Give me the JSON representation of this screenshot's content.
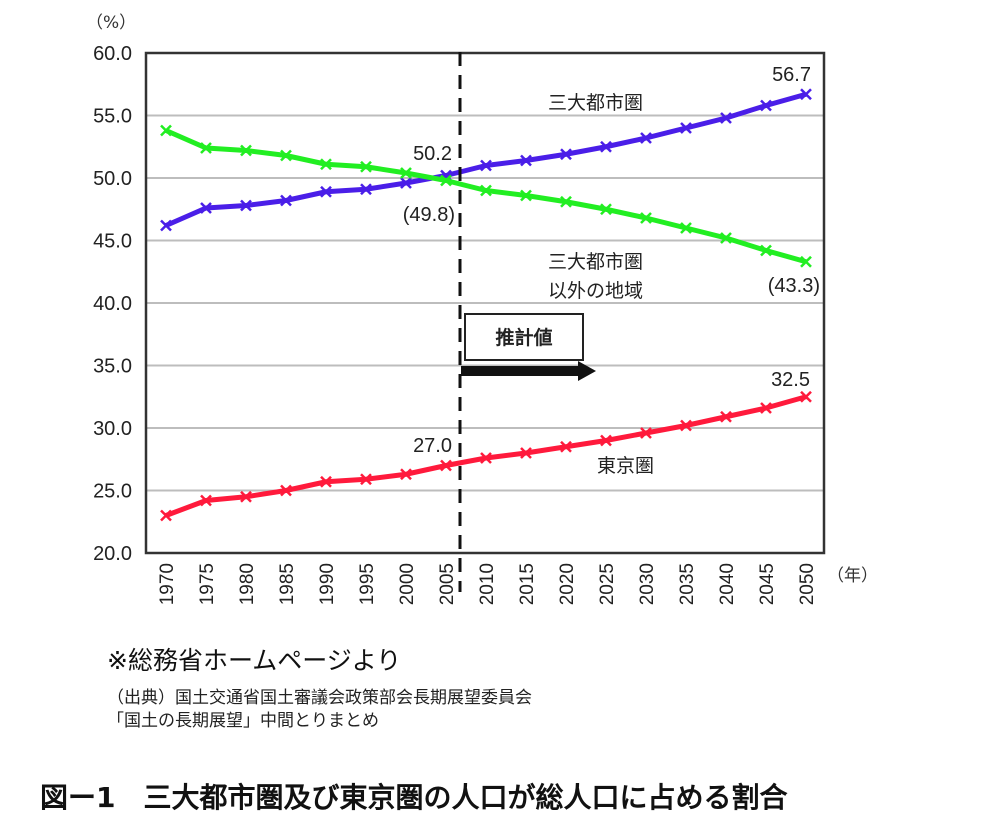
{
  "chart_data": {
    "type": "line",
    "title": "図ー1　三大都市圏及び東京圏の人口が総人口に占める割合",
    "ylabel": "（%）",
    "xlabel": "（年）",
    "ylim": [
      20.0,
      60.0
    ],
    "yticks": [
      "60.0",
      "55.0",
      "50.0",
      "45.0",
      "40.0",
      "35.0",
      "30.0",
      "25.0",
      "20.0"
    ],
    "ytick_values": [
      60,
      55,
      50,
      45,
      40,
      35,
      30,
      25,
      20
    ],
    "grid": true,
    "x": [
      "1970",
      "1975",
      "1980",
      "1985",
      "1990",
      "1995",
      "2000",
      "2005",
      "2010",
      "2015",
      "2020",
      "2025",
      "2030",
      "2035",
      "2040",
      "2045",
      "2050"
    ],
    "projection_start": "2005",
    "projection_label": "推計値",
    "series": [
      {
        "name": "三大都市圏",
        "color": "#4a1ee8",
        "values": [
          46.2,
          47.6,
          47.8,
          48.2,
          48.9,
          49.1,
          49.6,
          50.2,
          51.0,
          51.4,
          51.9,
          52.5,
          53.2,
          54.0,
          54.8,
          55.8,
          56.7
        ]
      },
      {
        "name": "三大都市圏以外の地域",
        "name_lines": [
          "三大都市圏",
          "以外の地域"
        ],
        "color": "#22ee22",
        "values": [
          53.8,
          52.4,
          52.2,
          51.8,
          51.1,
          50.9,
          50.4,
          49.8,
          49.0,
          48.6,
          48.1,
          47.5,
          46.8,
          46.0,
          45.2,
          44.2,
          43.3
        ]
      },
      {
        "name": "東京圏",
        "color": "#ff1a3c",
        "values": [
          23.0,
          24.2,
          24.5,
          25.0,
          25.7,
          25.9,
          26.3,
          27.0,
          27.6,
          28.0,
          28.5,
          29.0,
          29.6,
          30.2,
          30.9,
          31.6,
          32.5
        ]
      }
    ],
    "annotations": [
      {
        "text": "50.2"
      },
      {
        "text": "(49.8)"
      },
      {
        "text": "56.7"
      },
      {
        "text": "(43.3)"
      },
      {
        "text": "27.0"
      },
      {
        "text": "32.5"
      }
    ]
  },
  "source": {
    "main": "※総務省ホームページより",
    "line1": "（出典）国土交通省国土審議会政策部会長期展望委員会",
    "line2": "「国土の長期展望」中間とりまとめ"
  },
  "figure_title": "図ー1　三大都市圏及び東京圏の人口が総人口に占める割合"
}
